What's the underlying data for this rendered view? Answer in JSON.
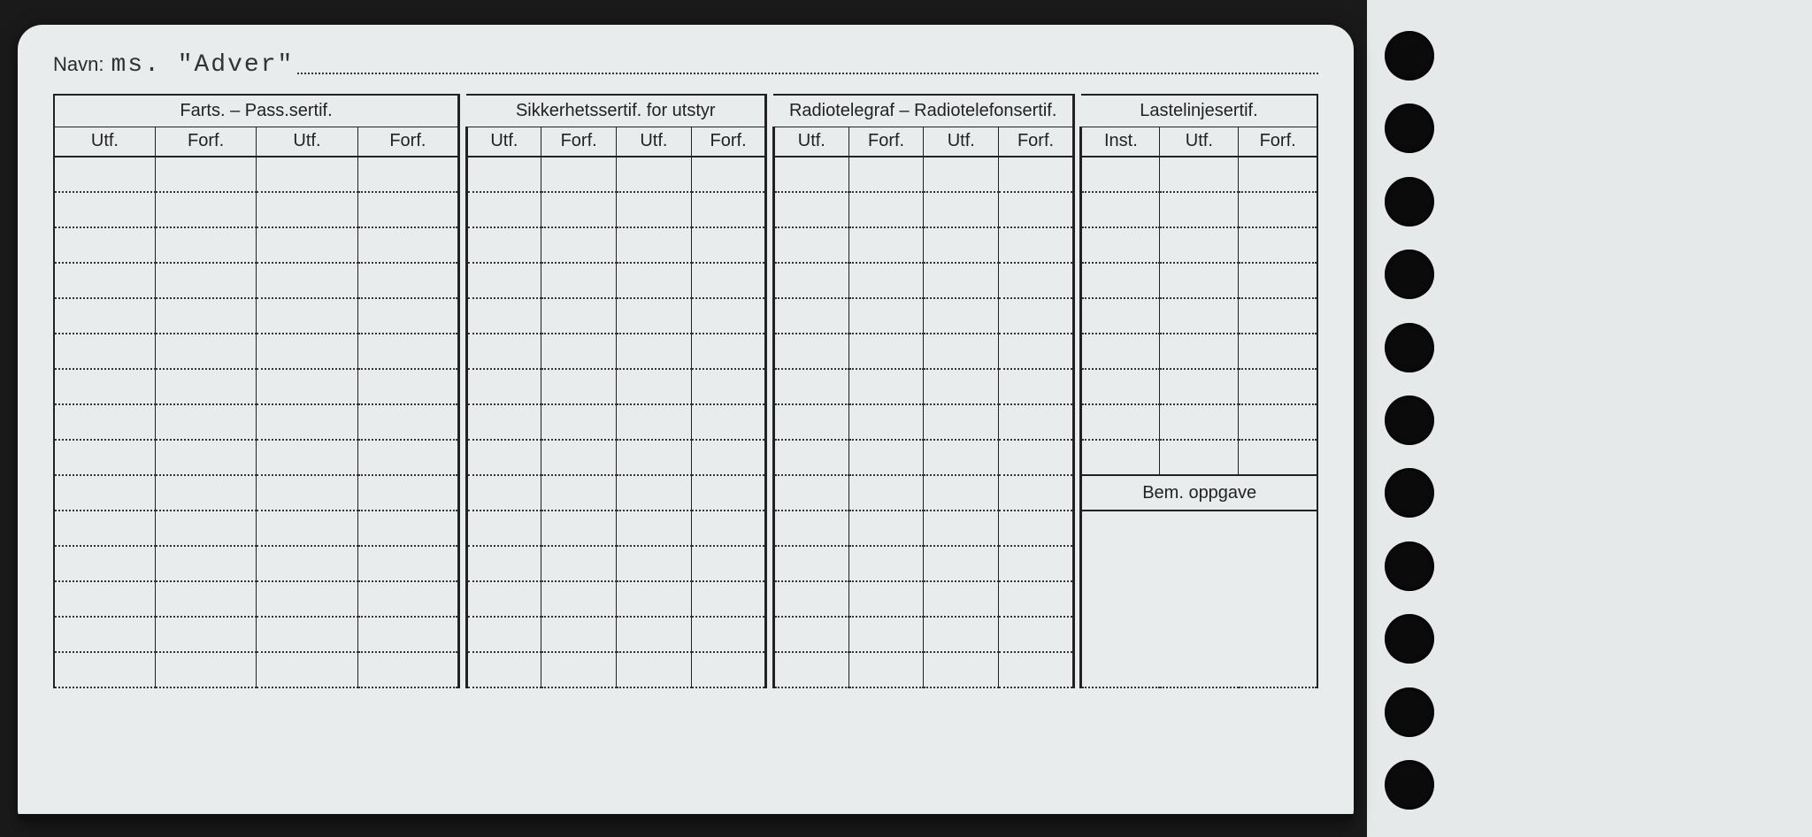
{
  "card": {
    "navn_label": "Navn:",
    "navn_value": "ms. \"Adver\"",
    "background_color": "#e8ecec",
    "text_color": "#222222",
    "dotted_color": "#333333"
  },
  "groups": [
    {
      "title": "Farts. – Pass.sertif.",
      "cols": [
        "Utf.",
        "Forf.",
        "Utf.",
        "Forf."
      ]
    },
    {
      "title": "Sikkerhetssertif. for utstyr",
      "cols": [
        "Utf.",
        "Forf.",
        "Utf.",
        "Forf."
      ]
    },
    {
      "title": "Radiotelegraf – Radiotelefonsertif.",
      "cols": [
        "Utf.",
        "Forf.",
        "Utf.",
        "Forf."
      ]
    },
    {
      "title": "Lastelinjesertif.",
      "cols": [
        "Inst.",
        "Utf.",
        "Forf."
      ]
    }
  ],
  "bem_label": "Bem. oppgave",
  "body_rows_upper": 9,
  "body_rows_lower": 5,
  "punch_hole_count": 11,
  "colors": {
    "page_bg": "#1a1a1a",
    "hole": "#0b0b0b",
    "strip": "#e6e9e9"
  }
}
